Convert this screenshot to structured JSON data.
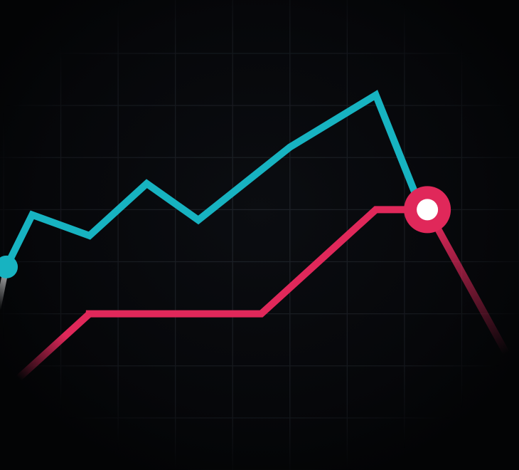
{
  "chart_data": {
    "type": "line",
    "title": "",
    "xlabel": "",
    "ylabel": "",
    "grid": true,
    "legend": "none",
    "xlim": [
      0,
      9
    ],
    "ylim": [
      0,
      8
    ],
    "background": "#050609",
    "grid_color": "#1f2329",
    "series": [
      {
        "color": "#17b3c1",
        "points": [
          {
            "x": -0.15,
            "y": 2.8
          },
          {
            "x": 0.05,
            "y": 3.9
          },
          {
            "x": 0.5,
            "y": 4.9
          },
          {
            "x": 1.5,
            "y": 4.5
          },
          {
            "x": 2.5,
            "y": 5.5
          },
          {
            "x": 3.4,
            "y": 4.8
          },
          {
            "x": 5.0,
            "y": 6.2
          },
          {
            "x": 6.5,
            "y": 7.2
          },
          {
            "x": 7.3,
            "y": 5.0
          }
        ],
        "start_marker": {
          "x": 0.05,
          "y": 3.9
        }
      },
      {
        "color": "#e0285a",
        "points": [
          {
            "x": 0.0,
            "y": 1.5
          },
          {
            "x": 1.5,
            "y": 3.0
          },
          {
            "x": 4.5,
            "y": 3.0
          },
          {
            "x": 6.5,
            "y": 5.0
          },
          {
            "x": 7.4,
            "y": 5.0
          },
          {
            "x": 8.9,
            "y": 2.0
          }
        ],
        "highlight_marker": {
          "x": 7.4,
          "y": 5.0
        }
      }
    ]
  }
}
